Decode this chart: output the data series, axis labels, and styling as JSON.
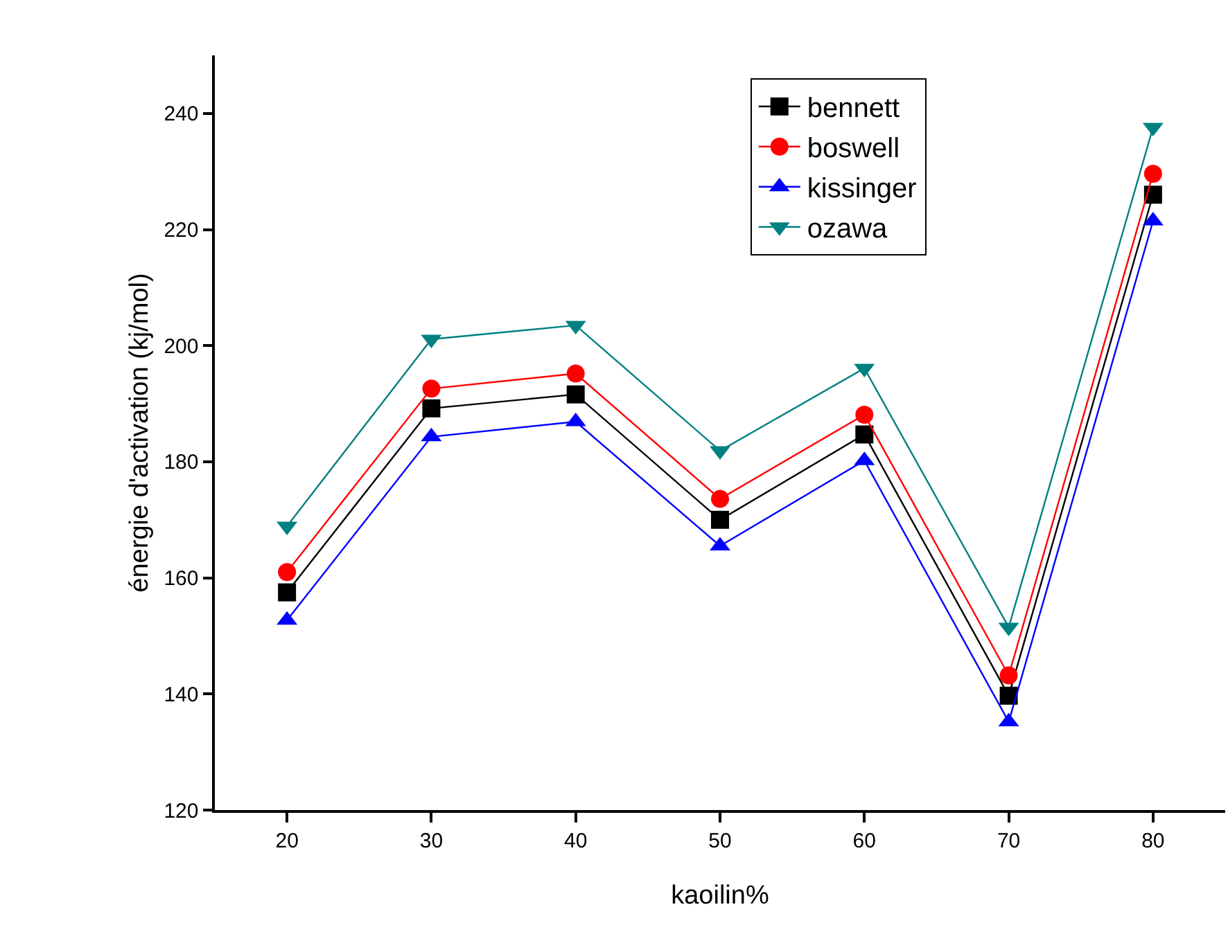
{
  "chart_data": {
    "type": "line",
    "xlabel": "kaoilin%",
    "ylabel": "énergie d'activation (kj/mol)",
    "x": [
      20,
      30,
      40,
      50,
      60,
      70,
      80
    ],
    "series": [
      {
        "name": "bennett",
        "color": "#000000",
        "marker": "square",
        "values": [
          157.5,
          189.2,
          191.6,
          170.0,
          184.7,
          139.7,
          226.0
        ]
      },
      {
        "name": "boswell",
        "color": "#ff0000",
        "marker": "circle",
        "values": [
          161.0,
          192.6,
          195.2,
          173.6,
          188.1,
          143.2,
          229.6
        ]
      },
      {
        "name": "kissinger",
        "color": "#0000ff",
        "marker": "triangle",
        "values": [
          152.7,
          184.3,
          186.9,
          165.5,
          180.2,
          135.2,
          221.5
        ]
      },
      {
        "name": "ozawa",
        "color": "#008080",
        "marker": "triangle-down",
        "values": [
          168.9,
          201.1,
          203.5,
          181.9,
          196.1,
          151.5,
          237.6
        ]
      }
    ],
    "xlim": [
      15,
      85
    ],
    "xticks": [
      20,
      30,
      40,
      50,
      60,
      70,
      80
    ],
    "ylim": [
      120,
      250
    ],
    "yticks": [
      120,
      140,
      160,
      180,
      200,
      220,
      240
    ],
    "grid": false,
    "legend": "top right",
    "line_style": "solid"
  }
}
